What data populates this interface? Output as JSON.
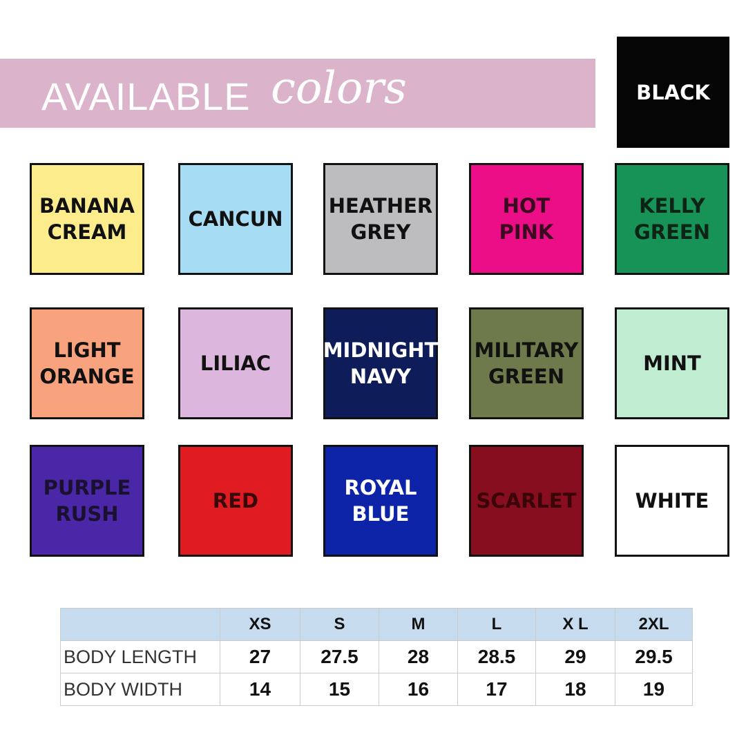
{
  "header": {
    "title_main": "AVAILABLE",
    "title_script": "colors"
  },
  "swatches": [
    {
      "label": "BLACK",
      "color": "#050505",
      "text_color": "#ffffff"
    },
    {
      "label": "BANANA\nCREAM",
      "color": "#fcec8c",
      "text_color": "#111111"
    },
    {
      "label": "CANCUN",
      "color": "#a6dcf4",
      "text_color": "#111111"
    },
    {
      "label": "HEATHER\nGREY",
      "color": "#bdbdbf",
      "text_color": "#111111"
    },
    {
      "label": "HOT\nPINK",
      "color": "#ec0e86",
      "text_color": "#3a0a20"
    },
    {
      "label": "KELLY\nGREEN",
      "color": "#179357",
      "text_color": "#0c2416"
    },
    {
      "label": "LIGHT\nORANGE",
      "color": "#f8a27e",
      "text_color": "#111111"
    },
    {
      "label": "LILIAC",
      "color": "#dcb6dc",
      "text_color": "#111111"
    },
    {
      "label": "MIDNIGHT\nNAVY",
      "color": "#0e1d5a",
      "text_color": "#ffffff"
    },
    {
      "label": "MILITARY\nGREEN",
      "color": "#6f7a4c",
      "text_color": "#111111"
    },
    {
      "label": "MINT",
      "color": "#c0ecd2",
      "text_color": "#111111"
    },
    {
      "label": "PURPLE\nRUSH",
      "color": "#4a27a6",
      "text_color": "#1a1030"
    },
    {
      "label": "RED",
      "color": "#e01c22",
      "text_color": "#3a0808"
    },
    {
      "label": "ROYAL\nBLUE",
      "color": "#0d24a8",
      "text_color": "#ffffff"
    },
    {
      "label": "SCARLET",
      "color": "#860e1e",
      "text_color": "#3a0508"
    },
    {
      "label": "WHITE",
      "color": "#ffffff",
      "text_color": "#111111"
    }
  ],
  "size_table": {
    "headers": [
      "",
      "XS",
      "S",
      "M",
      "L",
      "X L",
      "2XL"
    ],
    "rows": [
      {
        "label": "BODY LENGTH",
        "values": [
          "27",
          "27.5",
          "28",
          "28.5",
          "29",
          "29.5"
        ]
      },
      {
        "label": "BODY WIDTH",
        "values": [
          "14",
          "15",
          "16",
          "17",
          "18",
          "19"
        ]
      }
    ]
  }
}
